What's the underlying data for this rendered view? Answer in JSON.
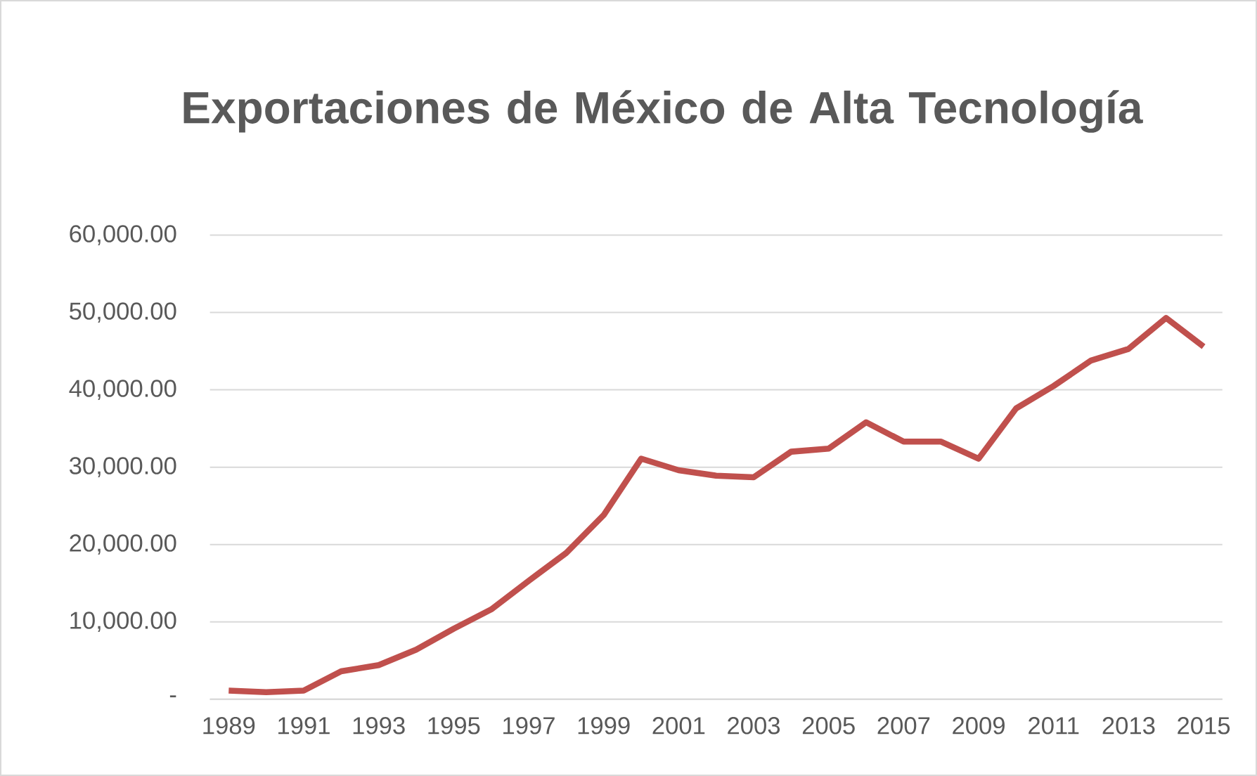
{
  "chart_data": {
    "type": "line",
    "title": "Exportaciones de México de  Alta Tecnología",
    "categories": [
      "1989",
      null,
      "1991",
      null,
      "1993",
      null,
      "1995",
      null,
      "1997",
      null,
      "1999",
      null,
      "2001",
      null,
      "2003",
      null,
      "2005",
      null,
      "2007",
      null,
      "2009",
      null,
      "2011",
      null,
      "2013",
      null,
      "2015"
    ],
    "series": [
      {
        "color": "#c0504d",
        "values": [
          1100,
          900,
          1100,
          3600,
          4400,
          6400,
          9100,
          11600,
          15300,
          18900,
          23800,
          31100,
          29600,
          28900,
          28700,
          32000,
          32400,
          35800,
          33300,
          33300,
          31100,
          37600,
          40500,
          43800,
          45300,
          49300,
          45600
        ]
      }
    ],
    "ylim": [
      0,
      60000
    ],
    "yticks": [
      {
        "value": 0,
        "label": "-"
      },
      {
        "value": 10000,
        "label": "10,000.00"
      },
      {
        "value": 20000,
        "label": "20,000.00"
      },
      {
        "value": 30000,
        "label": "30,000.00"
      },
      {
        "value": 40000,
        "label": "40,000.00"
      },
      {
        "value": 50000,
        "label": "50,000.00"
      },
      {
        "value": 60000,
        "label": "60,000.00"
      }
    ],
    "grid": "y"
  }
}
